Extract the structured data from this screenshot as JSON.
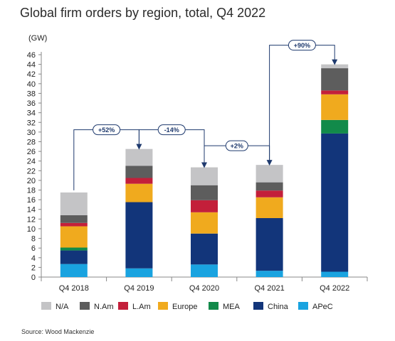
{
  "chart_data": {
    "type": "bar",
    "stacked": true,
    "title": "Global firm orders by region, total, Q4 2022",
    "unit_label": "(GW)",
    "source": "Source: Wood Mackenzie",
    "categories": [
      "Q4 2018",
      "Q4 2019",
      "Q4 2020",
      "Q4 2021",
      "Q4 2022"
    ],
    "ylim": [
      0,
      46
    ],
    "yticks": [
      0,
      2,
      4,
      6,
      8,
      10,
      12,
      14,
      16,
      18,
      20,
      22,
      24,
      26,
      28,
      30,
      32,
      34,
      36,
      38,
      40,
      42,
      44,
      46
    ],
    "series": [
      {
        "name": "APeC",
        "color": "#19a3e0",
        "values": [
          2.7,
          1.8,
          2.6,
          1.3,
          1.1
        ]
      },
      {
        "name": "China",
        "color": "#12357a",
        "values": [
          2.8,
          13.7,
          6.4,
          10.9,
          28.6
        ]
      },
      {
        "name": "MEA",
        "color": "#128a4a",
        "values": [
          0.6,
          0.0,
          0.0,
          0.0,
          2.8
        ]
      },
      {
        "name": "Europe",
        "color": "#f0aa1e",
        "values": [
          4.4,
          3.8,
          4.4,
          4.3,
          5.3
        ]
      },
      {
        "name": "L.Am",
        "color": "#c31f3a",
        "values": [
          0.7,
          1.2,
          2.5,
          1.4,
          0.8
        ]
      },
      {
        "name": "N.Am",
        "color": "#5d5d5d",
        "values": [
          1.6,
          2.5,
          3.1,
          1.7,
          4.6
        ]
      },
      {
        "name": "N/A",
        "color": "#c4c4c6",
        "values": [
          4.7,
          3.5,
          3.7,
          3.6,
          0.8
        ]
      }
    ],
    "legend_order": [
      "N/A",
      "N.Am",
      "L.Am",
      "Europe",
      "MEA",
      "China",
      "APeC"
    ],
    "legend_position": "bottom",
    "grid": false,
    "annotations": [
      {
        "from": 0,
        "to": 1,
        "label": "+52%"
      },
      {
        "from": 1,
        "to": 2,
        "label": "-14%"
      },
      {
        "from": 2,
        "to": 3,
        "label": "+2%"
      },
      {
        "from": 3,
        "to": 4,
        "label": "+90%"
      }
    ]
  }
}
